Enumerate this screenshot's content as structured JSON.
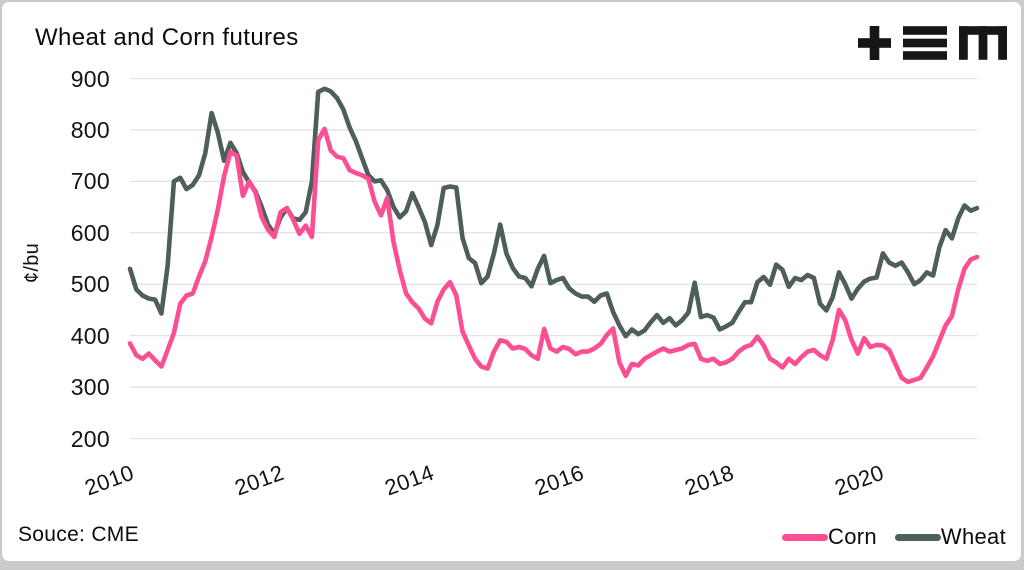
{
  "card": {
    "title": "Wheat and Corn futures"
  },
  "icons": {
    "logo": "plus-triple-bar-m-logo"
  },
  "source": {
    "label": "Souce: CME"
  },
  "legend": [
    {
      "label": "Corn",
      "color": "#fb4e93"
    },
    {
      "label": "Wheat",
      "color": "#4d5e5b"
    }
  ],
  "colors": {
    "corn": "#fb4e93",
    "wheat": "#4d5e5b",
    "grid": "#e2e2e2",
    "text": "#111111",
    "card_border": "#c9c9c9",
    "page_background": "#cbcbcb",
    "logo": "#161616"
  },
  "chart_data": {
    "type": "line",
    "title": "Wheat and Corn futures",
    "xlabel": "",
    "ylabel": "¢/bu",
    "ylim": [
      200,
      900
    ],
    "y_ticks": [
      "900",
      "800",
      "700",
      "600",
      "500",
      "400",
      "300",
      "200"
    ],
    "x_ticks": [
      "2010",
      "2012",
      "2014",
      "2016",
      "2018",
      "2020"
    ],
    "x_range": "monthly, Jan 2010 - Apr 2021",
    "grid": "horizontal",
    "legend_position": "bottom-right",
    "series": [
      {
        "name": "Corn",
        "color": "#fb4e93",
        "values": [
          385,
          362,
          355,
          365,
          352,
          340,
          372,
          405,
          462,
          478,
          482,
          515,
          545,
          592,
          645,
          710,
          757,
          750,
          672,
          700,
          678,
          630,
          606,
          592,
          640,
          648,
          626,
          598,
          614,
          592,
          780,
          802,
          760,
          748,
          745,
          722,
          716,
          712,
          705,
          660,
          634,
          668,
          582,
          527,
          482,
          465,
          453,
          433,
          424,
          466,
          490,
          504,
          478,
          408,
          381,
          355,
          340,
          336,
          369,
          391,
          388,
          375,
          378,
          374,
          362,
          355,
          413,
          375,
          369,
          378,
          374,
          364,
          369,
          369,
          375,
          384,
          401,
          414,
          348,
          322,
          345,
          342,
          355,
          362,
          369,
          375,
          369,
          372,
          375,
          382,
          384,
          355,
          351,
          355,
          345,
          348,
          355,
          369,
          378,
          382,
          398,
          381,
          355,
          348,
          338,
          355,
          345,
          358,
          369,
          372,
          362,
          355,
          392,
          450,
          430,
          392,
          365,
          395,
          378,
          382,
          381,
          372,
          345,
          318,
          310,
          314,
          318,
          338,
          360,
          390,
          420,
          438,
          490,
          530,
          548,
          553
        ]
      },
      {
        "name": "Wheat",
        "color": "#4d5e5b",
        "values": [
          530,
          490,
          478,
          472,
          470,
          443,
          535,
          700,
          707,
          685,
          693,
          712,
          755,
          833,
          795,
          740,
          775,
          755,
          718,
          698,
          680,
          650,
          616,
          598,
          630,
          648,
          628,
          625,
          640,
          700,
          874,
          880,
          875,
          862,
          840,
          805,
          778,
          745,
          712,
          700,
          702,
          683,
          650,
          630,
          642,
          677,
          650,
          621,
          576,
          615,
          687,
          690,
          688,
          590,
          551,
          541,
          502,
          515,
          560,
          616,
          560,
          532,
          515,
          512,
          496,
          530,
          555,
          502,
          508,
          512,
          492,
          482,
          476,
          476,
          466,
          478,
          482,
          446,
          420,
          399,
          412,
          403,
          410,
          426,
          440,
          425,
          434,
          420,
          430,
          445,
          503,
          436,
          440,
          435,
          412,
          418,
          425,
          446,
          465,
          465,
          504,
          514,
          499,
          538,
          528,
          495,
          512,
          508,
          518,
          512,
          462,
          449,
          475,
          523,
          500,
          472,
          491,
          505,
          511,
          513,
          560,
          542,
          536,
          542,
          523,
          500,
          508,
          523,
          517,
          572,
          605,
          589,
          628,
          653,
          643,
          648
        ]
      }
    ]
  }
}
